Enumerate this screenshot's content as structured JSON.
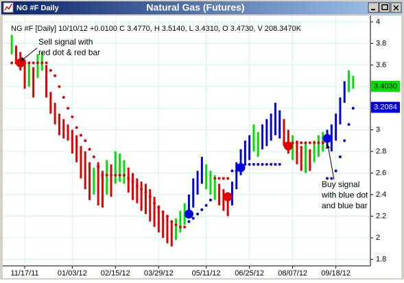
{
  "window": {
    "title": "NG #F Daily"
  },
  "chart_data": {
    "type": "hlbar",
    "title": "Natural Gas (Futures)",
    "info": "NG #F [Daily] 10/10/12 +0.0100 C 3.4770, H 3.5140, L 3.4310, O 3.4730, V 208.3470K",
    "categories": [
      null,
      null,
      null,
      "11/17/11",
      null,
      null,
      null,
      null,
      null,
      null,
      null,
      null,
      null,
      null,
      "01/03/12",
      null,
      null,
      null,
      null,
      null,
      null,
      null,
      null,
      null,
      "02/15/12",
      null,
      null,
      null,
      null,
      null,
      null,
      null,
      null,
      null,
      "03/29/12",
      null,
      null,
      null,
      null,
      null,
      null,
      null,
      null,
      null,
      null,
      "05/11/12",
      null,
      null,
      null,
      null,
      null,
      null,
      null,
      null,
      null,
      "06/25/12",
      null,
      null,
      null,
      null,
      null,
      null,
      null,
      null,
      null,
      "08/07/12",
      null,
      null,
      null,
      null,
      null,
      null,
      null,
      null,
      null,
      "09/18/12",
      null,
      null,
      null,
      null
    ],
    "high": [
      3.88,
      3.78,
      3.72,
      3.65,
      3.62,
      3.58,
      3.7,
      3.72,
      3.6,
      3.35,
      3.25,
      3.15,
      3.1,
      3.05,
      3.0,
      2.95,
      2.85,
      2.8,
      2.7,
      2.65,
      2.7,
      2.62,
      2.72,
      2.68,
      2.8,
      2.78,
      2.72,
      2.65,
      2.6,
      2.55,
      2.52,
      2.5,
      2.45,
      2.38,
      2.3,
      2.25,
      2.2,
      2.15,
      2.18,
      2.25,
      2.32,
      2.4,
      2.55,
      2.62,
      2.75,
      2.68,
      2.62,
      2.58,
      2.5,
      2.45,
      2.42,
      2.52,
      2.7,
      2.82,
      2.9,
      2.95,
      3.05,
      2.98,
      3.05,
      3.1,
      3.15,
      3.25,
      3.18,
      3.1,
      3.0,
      2.95,
      2.9,
      2.85,
      2.88,
      2.82,
      2.9,
      2.95,
      2.98,
      3.0,
      3.05,
      3.15,
      3.3,
      3.45,
      3.55,
      3.5
    ],
    "low": [
      3.7,
      3.62,
      3.55,
      3.38,
      3.4,
      3.3,
      3.48,
      3.55,
      3.3,
      3.15,
      3.05,
      2.95,
      2.92,
      2.9,
      2.78,
      2.7,
      2.55,
      2.45,
      2.35,
      2.4,
      2.3,
      2.28,
      2.4,
      2.38,
      2.5,
      2.52,
      2.5,
      2.42,
      2.35,
      2.32,
      2.25,
      2.22,
      2.15,
      2.1,
      2.05,
      2.0,
      1.95,
      1.92,
      1.98,
      2.05,
      2.12,
      2.2,
      2.28,
      2.4,
      2.5,
      2.45,
      2.4,
      2.35,
      2.3,
      2.25,
      2.2,
      2.3,
      2.45,
      2.58,
      2.68,
      2.72,
      2.8,
      2.75,
      2.82,
      2.85,
      2.9,
      2.95,
      2.92,
      2.85,
      2.78,
      2.72,
      2.68,
      2.62,
      2.6,
      2.62,
      2.7,
      2.75,
      2.8,
      2.85,
      2.8,
      2.9,
      3.05,
      3.25,
      3.35,
      3.38
    ],
    "bar_colors": [
      "#00e000",
      "#e00000",
      "#e00000",
      "#e00000",
      "#00e000",
      "#e00000",
      "#00e000",
      "#00e000",
      "#e00000",
      "#e00000",
      "#e00000",
      "#e00000",
      "#e00000",
      "#e00000",
      "#e00000",
      "#e00000",
      "#e00000",
      "#e00000",
      "#e00000",
      "#00e000",
      "#e00000",
      "#e00000",
      "#00e000",
      "#e00000",
      "#00e000",
      "#00e000",
      "#00e000",
      "#e00000",
      "#e00000",
      "#e00000",
      "#e00000",
      "#e00000",
      "#e00000",
      "#e00000",
      "#e00000",
      "#e00000",
      "#e00000",
      "#e00000",
      "#00e000",
      "#00e000",
      "#00e000",
      "#0000e0",
      "#0000e0",
      "#0000e0",
      "#0000e0",
      "#00e000",
      "#00e000",
      "#00e000",
      "#e00000",
      "#e00000",
      "#e00000",
      "#0000e0",
      "#0000e0",
      "#0000e0",
      "#0000e0",
      "#0000e0",
      "#00e000",
      "#00e000",
      "#0000e0",
      "#0000e0",
      "#0000e0",
      "#0000e0",
      "#0000e0",
      "#e00000",
      "#e00000",
      "#00e000",
      "#e00000",
      "#e00000",
      "#00e000",
      "#e00000",
      "#00e000",
      "#00e000",
      "#00e000",
      "#0000e0",
      "#0000e0",
      "#0000e0",
      "#0000e0",
      "#0000e0",
      "#00e000",
      "#00e000"
    ],
    "stops": [
      {
        "color": "#e00000",
        "values": [
          3.62,
          3.62,
          3.62,
          3.62,
          3.62,
          3.62,
          3.62,
          3.62,
          3.62,
          3.55,
          3.5,
          3.4,
          3.3,
          3.2,
          3.12,
          3.02,
          2.95,
          2.9,
          2.82,
          2.75,
          2.66,
          2.58,
          2.58,
          2.58,
          2.58,
          2.58,
          2.58,
          2.55,
          2.52,
          2.48,
          2.45,
          2.42,
          2.38,
          2.32,
          2.28,
          2.24,
          2.2,
          2.15,
          2.12,
          2.1,
          2.1,
          null,
          null,
          null,
          null,
          null,
          null,
          2.55,
          2.55,
          2.55,
          2.55,
          null,
          null,
          null,
          null,
          null,
          null,
          null,
          null,
          null,
          null,
          null,
          null,
          2.88,
          2.88,
          2.88,
          2.88,
          2.88,
          2.88,
          2.88,
          2.88,
          2.88,
          2.88,
          null,
          null,
          null,
          null,
          null,
          null,
          null
        ]
      },
      {
        "color": "#0000e0",
        "values": [
          null,
          null,
          null,
          null,
          null,
          null,
          null,
          null,
          null,
          null,
          null,
          null,
          null,
          null,
          null,
          null,
          null,
          null,
          null,
          null,
          null,
          null,
          null,
          null,
          null,
          null,
          null,
          null,
          null,
          null,
          null,
          null,
          null,
          null,
          null,
          null,
          null,
          null,
          null,
          null,
          null,
          2.15,
          2.18,
          2.22,
          2.26,
          2.3,
          2.35,
          null,
          null,
          null,
          null,
          2.62,
          2.62,
          2.66,
          2.68,
          2.68,
          2.68,
          2.68,
          2.68,
          2.68,
          2.68,
          2.68,
          2.68,
          null,
          null,
          null,
          null,
          null,
          null,
          null,
          null,
          null,
          null,
          2.55,
          2.55,
          2.62,
          2.75,
          2.9,
          3.05,
          3.2
        ]
      }
    ],
    "signals": [
      {
        "color": "#e00000",
        "values": [
          null,
          null,
          3.62,
          null,
          null,
          null,
          null,
          null,
          null,
          null,
          null,
          null,
          null,
          null,
          null,
          null,
          null,
          null,
          null,
          null,
          null,
          null,
          null,
          null,
          null,
          null,
          null,
          null,
          null,
          null,
          null,
          null,
          null,
          null,
          null,
          null,
          null,
          null,
          null,
          null,
          null,
          null,
          null,
          null,
          null,
          null,
          null,
          null,
          null,
          null,
          2.38,
          null,
          null,
          null,
          null,
          null,
          null,
          null,
          null,
          null,
          null,
          null,
          null,
          null,
          2.85,
          null,
          null,
          null,
          null,
          null,
          null,
          null,
          null,
          null,
          null,
          null,
          null,
          null,
          null,
          null
        ]
      },
      {
        "color": "#0000e0",
        "values": [
          null,
          null,
          null,
          null,
          null,
          null,
          null,
          null,
          null,
          null,
          null,
          null,
          null,
          null,
          null,
          null,
          null,
          null,
          null,
          null,
          null,
          null,
          null,
          null,
          null,
          null,
          null,
          null,
          null,
          null,
          null,
          null,
          null,
          null,
          null,
          null,
          null,
          null,
          null,
          null,
          null,
          2.22,
          null,
          null,
          null,
          null,
          null,
          null,
          null,
          null,
          null,
          null,
          null,
          2.65,
          null,
          null,
          null,
          null,
          null,
          null,
          null,
          null,
          null,
          null,
          null,
          null,
          null,
          null,
          null,
          null,
          null,
          null,
          null,
          2.92,
          null,
          null,
          null,
          null,
          null,
          null
        ]
      }
    ],
    "price_markers": [
      {
        "value": 3.403,
        "label": "3.4030",
        "color": "#00e000",
        "text_color": "#000000"
      },
      {
        "value": 3.2084,
        "label": "3.2084",
        "color": "#0000e0",
        "text_color": "#ffffff"
      }
    ],
    "ylim": [
      1.74,
      4.05
    ],
    "yticks": [
      1.8,
      2,
      2.2,
      2.4,
      2.6,
      2.8,
      3,
      3.2,
      3.4,
      3.6,
      3.8,
      4
    ],
    "grid": true,
    "annotations": [
      [
        "Sell signal with",
        "red dot & red bar"
      ],
      [
        "Buy signal",
        "with blue dot",
        "and blue bar"
      ]
    ]
  }
}
